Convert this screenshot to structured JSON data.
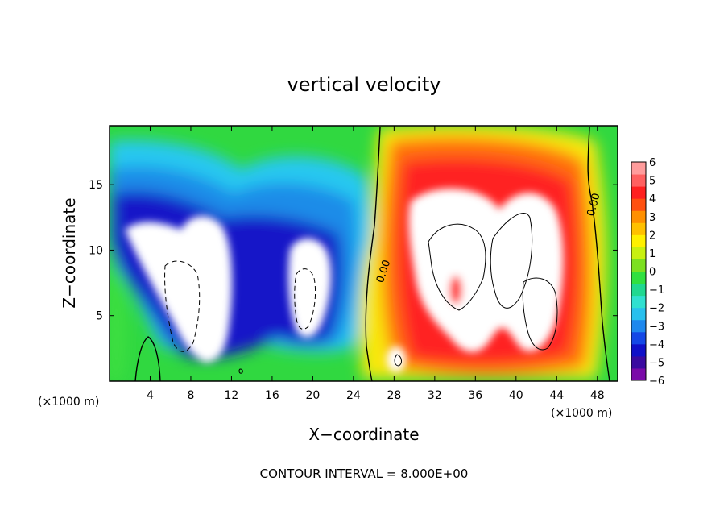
{
  "chart_data": {
    "type": "heatmap",
    "title": "vertical velocity",
    "xlabel": "X−coordinate",
    "ylabel": "Z−coordinate",
    "x_unit_left": "(×1000 m)",
    "x_unit_right": "(×1000 m)",
    "footer": "CONTOUR INTERVAL = 8.000E+00",
    "xlim": [
      0,
      50
    ],
    "ylim": [
      0,
      19.5
    ],
    "x_ticks": [
      4,
      8,
      12,
      16,
      20,
      24,
      28,
      32,
      36,
      40,
      44,
      48
    ],
    "y_ticks": [
      5,
      10,
      15
    ],
    "colorbar": {
      "labels": [
        "6",
        "5",
        "4",
        "3",
        "2",
        "1",
        "0",
        "−1",
        "−2",
        "−3",
        "−4",
        "−5",
        "−6"
      ],
      "range": [
        -6,
        6
      ],
      "colors": [
        "#7a0aa8",
        "#3a0aa0",
        "#1010c8",
        "#1448e6",
        "#1e88ee",
        "#28c0ee",
        "#30e0d0",
        "#20d890",
        "#30e040",
        "#7ce020",
        "#c8f010",
        "#fff000",
        "#ffc000",
        "#ff9000",
        "#ff5010",
        "#ff2020",
        "#ff6060",
        "#ff9c9c"
      ]
    },
    "contour_labels": [
      "0.00",
      "0.00"
    ],
    "updraft_centers_km": [
      [
        34,
        9
      ],
      [
        38,
        9
      ],
      [
        42,
        8
      ],
      [
        28.5,
        1.5
      ]
    ],
    "downdraft_centers_km": [
      [
        8,
        8
      ],
      [
        19.5,
        7.5
      ]
    ]
  }
}
